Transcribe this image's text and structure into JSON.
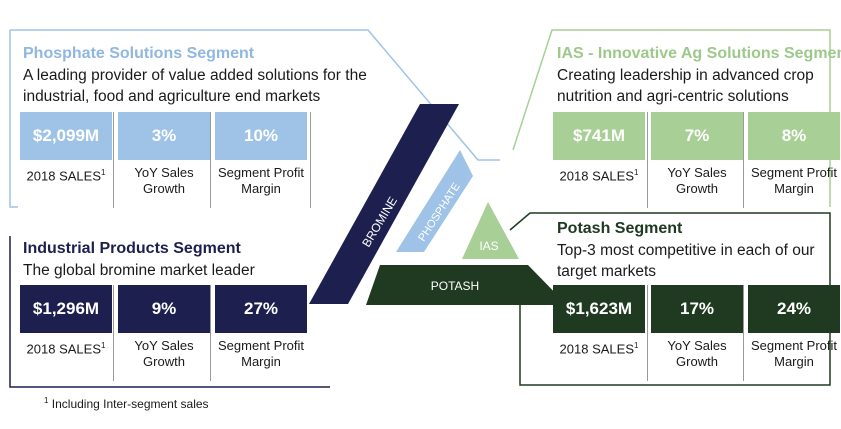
{
  "colors": {
    "phosphate": "#9fc3e6",
    "ias": "#a8cf95",
    "industrial": "#1d1f4f",
    "potash": "#203a22",
    "phosphate_title": "#8fb7e0",
    "ias_title": "#9cc98a"
  },
  "segments": {
    "phosphate": {
      "title": "Phosphate Solutions Segment",
      "desc_line1": "A leading provider of value added solutions for the",
      "desc_line2": "industrial, food and agriculture end markets",
      "metrics": [
        {
          "value": "$2,099M",
          "label1": "2018 SALES",
          "sup": "1",
          "label2": ""
        },
        {
          "value": "3%",
          "label1": "YoY Sales",
          "sup": "",
          "label2": "Growth"
        },
        {
          "value": "10%",
          "label1": "Segment Profit",
          "sup": "",
          "label2": "Margin"
        }
      ]
    },
    "ias": {
      "title": "IAS - Innovative Ag Solutions Segment",
      "desc_line1": "Creating leadership in advanced crop",
      "desc_line2": "nutrition and agri-centric solutions",
      "metrics": [
        {
          "value": "$741M",
          "label1": "2018 SALES",
          "sup": "1",
          "label2": ""
        },
        {
          "value": "7%",
          "label1": "YoY Sales",
          "sup": "",
          "label2": "Growth"
        },
        {
          "value": "8%",
          "label1": "Segment Profit",
          "sup": "",
          "label2": "Margin"
        }
      ]
    },
    "industrial": {
      "title": "Industrial Products Segment",
      "desc_line1": "The global bromine market leader",
      "metrics": [
        {
          "value": "$1,296M",
          "label1": "2018 SALES",
          "sup": "1",
          "label2": ""
        },
        {
          "value": "9%",
          "label1": "YoY Sales",
          "sup": "",
          "label2": "Growth"
        },
        {
          "value": "27%",
          "label1": "Segment Profit",
          "sup": "",
          "label2": "Margin"
        }
      ]
    },
    "potash": {
      "title": "Potash Segment",
      "desc_line1": "Top-3 most competitive in each of our",
      "desc_line2": "target markets",
      "metrics": [
        {
          "value": "$1,623M",
          "label1": "2018 SALES",
          "sup": "1",
          "label2": ""
        },
        {
          "value": "17%",
          "label1": "YoY Sales",
          "sup": "",
          "label2": "Growth"
        },
        {
          "value": "24%",
          "label1": "Segment Profit",
          "sup": "",
          "label2": "Margin"
        }
      ]
    }
  },
  "pyramid": {
    "bromine": "BROMINE",
    "phosphate": "PHOSPHATE",
    "ias": "IAS",
    "potash": "POTASH"
  },
  "footnote": {
    "sup": "1",
    "text": " Including Inter-segment sales"
  }
}
